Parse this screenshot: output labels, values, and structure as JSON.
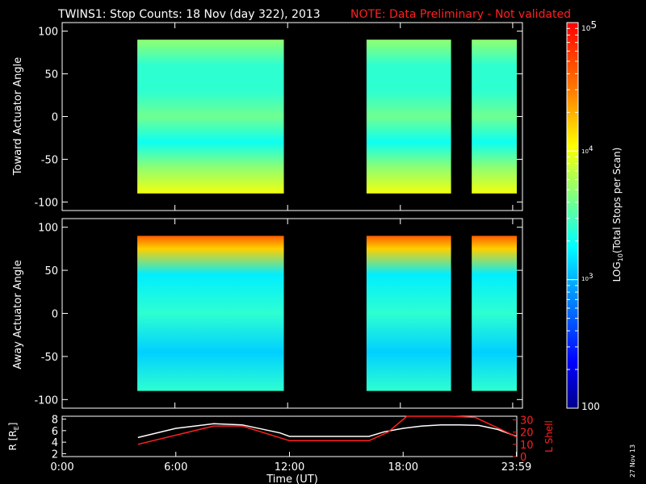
{
  "title": "TWINS1: Stop Counts: 18 Nov (day 322), 2013",
  "note": "NOTE: Data Preliminary - Not validated",
  "date_stamp": "27 Nov 13",
  "colors": {
    "background": "#000000",
    "axis": "#ffffff",
    "note": "#ff2020",
    "r_line": "#ffffff",
    "l_line": "#ff2020"
  },
  "chart_data": [
    {
      "type": "heatmap",
      "ylabel": "Toward Actuator Angle",
      "x_range_hours": [
        0,
        24.5
      ],
      "ylim": [
        -110,
        110
      ],
      "yticks": [
        "100",
        "50",
        "0",
        "-50",
        "-100"
      ],
      "y_tick_values": [
        100,
        50,
        0,
        -50,
        -100
      ],
      "y_extent": [
        -90,
        90
      ],
      "segments_hours": [
        [
          4.0,
          11.8
        ],
        [
          16.2,
          20.7
        ],
        [
          21.8,
          24.2
        ]
      ],
      "log10_counts_profile_by_angle": [
        {
          "angle": -90,
          "log10": 4.0
        },
        {
          "angle": -60,
          "log10": 3.7
        },
        {
          "angle": -30,
          "log10": 3.3
        },
        {
          "angle": 0,
          "log10": 3.6
        },
        {
          "angle": 30,
          "log10": 3.4
        },
        {
          "angle": 60,
          "log10": 3.4
        },
        {
          "angle": 90,
          "log10": 3.7
        }
      ]
    },
    {
      "type": "heatmap",
      "ylabel": "Away Actuator Angle",
      "x_range_hours": [
        0,
        24.5
      ],
      "ylim": [
        -110,
        110
      ],
      "yticks": [
        "100",
        "50",
        "0",
        "-50",
        "-100"
      ],
      "y_tick_values": [
        100,
        50,
        0,
        -50,
        -100
      ],
      "y_extent": [
        -90,
        90
      ],
      "segments_hours": [
        [
          4.0,
          11.8
        ],
        [
          16.2,
          20.7
        ],
        [
          21.8,
          24.2
        ]
      ],
      "log10_counts_profile_by_angle": [
        {
          "angle": -90,
          "log10": 3.4
        },
        {
          "angle": -45,
          "log10": 3.1
        },
        {
          "angle": 0,
          "log10": 3.4
        },
        {
          "angle": 45,
          "log10": 3.2
        },
        {
          "angle": 75,
          "log10": 4.2
        },
        {
          "angle": 90,
          "log10": 4.6
        }
      ]
    },
    {
      "type": "line",
      "ylabel": "R [R",
      "ylabel_sub": "E",
      "ylabel_end": "]",
      "y2label": "L Shell",
      "xlabel": "Time (UT)",
      "xticks": [
        "0:00",
        "6:00",
        "12:00",
        "18:00",
        "23:59"
      ],
      "xtick_values": [
        0,
        6,
        12,
        18,
        23.98
      ],
      "yticks": [
        "8",
        "6",
        "4",
        "2"
      ],
      "ytick_values": [
        8,
        6,
        4,
        2
      ],
      "ylim": [
        1.5,
        8.5
      ],
      "y2ticks": [
        "30",
        "20",
        "10",
        "0"
      ],
      "y2tick_values": [
        30,
        20,
        10,
        0
      ],
      "y2lim": [
        0,
        33
      ],
      "series": [
        {
          "name": "R",
          "axis": "left",
          "x": [
            4,
            6,
            8,
            9.5,
            11.5,
            12,
            16.2,
            17,
            18,
            19,
            20,
            21,
            22,
            23,
            24
          ],
          "y": [
            4.8,
            6.4,
            7.2,
            7.0,
            5.6,
            5.0,
            5.0,
            5.8,
            6.4,
            6.8,
            7.0,
            7.0,
            6.9,
            6.2,
            5.0
          ]
        },
        {
          "name": "L",
          "axis": "right",
          "x": [
            4,
            8,
            9.5,
            12,
            16.2,
            17.2,
            18.2,
            20.5,
            21.8,
            23.2,
            24
          ],
          "y": [
            10,
            25,
            25,
            13,
            13,
            20,
            33,
            33,
            32,
            22,
            16
          ]
        }
      ]
    }
  ],
  "colorbar": {
    "label_prefix": "LOG",
    "label_sub": "10",
    "label_suffix": "(Total Stops per Scan)",
    "log10_range": [
      2,
      5
    ],
    "top_label_base": "10",
    "top_label_exp": "5",
    "mid_label_1_base": "10",
    "mid_label_1_exp": "4",
    "mid_label_2_base": "10",
    "mid_label_2_exp": "3",
    "bottom_label": "100"
  }
}
